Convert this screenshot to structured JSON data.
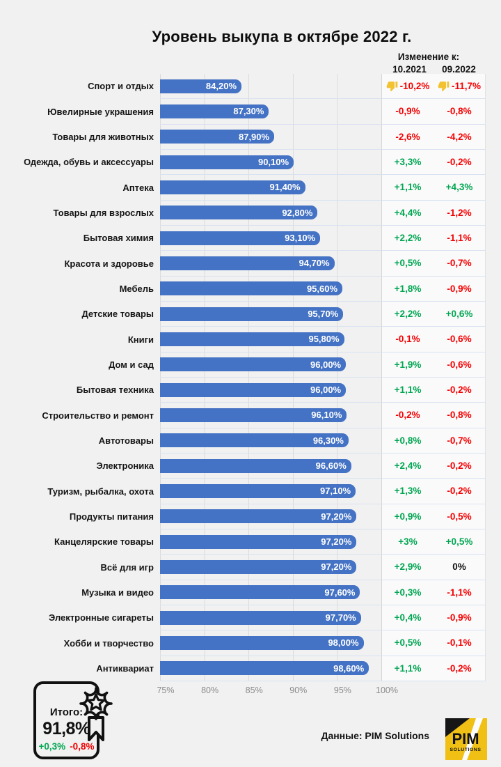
{
  "title": "Уровень выкупа в октябре 2022 г.",
  "header": {
    "change_title": "Изменение к:",
    "columns": [
      "10.2021",
      "09.2022"
    ]
  },
  "chart_data": {
    "type": "bar",
    "orientation": "horizontal",
    "title": "Уровень выкупа в октябре 2022 г.",
    "xlabel": "",
    "ylabel": "",
    "xlim": [
      75,
      100
    ],
    "x_ticks": [
      "75%",
      "80%",
      "85%",
      "90%",
      "95%",
      "100%"
    ],
    "grid": true,
    "bar_color": "#4472C4",
    "categories": [
      "Спорт и отдых",
      "Ювелирные украшения",
      "Товары для животных",
      "Одежда, обувь и аксессуары",
      "Аптека",
      "Товары для взрослых",
      "Бытовая химия",
      "Красота и здоровье",
      "Мебель",
      "Детские товары",
      "Книги",
      "Дом и сад",
      "Бытовая техника",
      "Строительство и ремонт",
      "Автотовары",
      "Электроника",
      "Туризм, рыбалка, охота",
      "Продукты питания",
      "Канцелярские товары",
      "Всё для игр",
      "Музыка и видео",
      "Электронные сигареты",
      "Хобби и творчество",
      "Антиквариат"
    ],
    "values": [
      84.2,
      87.3,
      87.9,
      90.1,
      91.4,
      92.8,
      93.1,
      94.7,
      95.6,
      95.7,
      95.8,
      96.0,
      96.0,
      96.1,
      96.3,
      96.6,
      97.1,
      97.2,
      97.2,
      97.2,
      97.6,
      97.7,
      98.0,
      98.6
    ],
    "value_labels": [
      "84,20%",
      "87,30%",
      "87,90%",
      "90,10%",
      "91,40%",
      "92,80%",
      "93,10%",
      "94,70%",
      "95,60%",
      "95,70%",
      "95,80%",
      "96,00%",
      "96,00%",
      "96,10%",
      "96,30%",
      "96,60%",
      "97,10%",
      "97,20%",
      "97,20%",
      "97,20%",
      "97,60%",
      "97,70%",
      "98,00%",
      "98,60%"
    ],
    "series": [
      {
        "name": "Изменение к 10.2021",
        "values": [
          "-10,2%",
          "-0,9%",
          "-2,6%",
          "+3,3%",
          "+1,1%",
          "+4,4%",
          "+2,2%",
          "+0,5%",
          "+1,8%",
          "+2,2%",
          "-0,1%",
          "+1,9%",
          "+1,1%",
          "-0,2%",
          "+0,8%",
          "+2,4%",
          "+1,3%",
          "+0,9%",
          "+3%",
          "+2,9%",
          "+0,3%",
          "+0,4%",
          "+0,5%",
          "+1,1%"
        ],
        "directions": [
          "down",
          "down",
          "down",
          "up",
          "up",
          "up",
          "up",
          "up",
          "up",
          "up",
          "down",
          "up",
          "up",
          "down",
          "up",
          "up",
          "up",
          "up",
          "up",
          "up",
          "up",
          "up",
          "up",
          "up"
        ],
        "thumb_rows": [
          0
        ]
      },
      {
        "name": "Изменение к 09.2022",
        "values": [
          "-11,7%",
          "-0,8%",
          "-4,2%",
          "-0,2%",
          "+4,3%",
          "-1,2%",
          "-1,1%",
          "-0,7%",
          "-0,9%",
          "+0,6%",
          "-0,6%",
          "-0,6%",
          "-0,2%",
          "-0,8%",
          "-0,7%",
          "-0,2%",
          "-0,2%",
          "-0,5%",
          "+0,5%",
          "0%",
          "-1,1%",
          "-0,9%",
          "-0,1%",
          "-0,2%"
        ],
        "directions": [
          "down",
          "down",
          "down",
          "down",
          "up",
          "down",
          "down",
          "down",
          "down",
          "up",
          "down",
          "down",
          "down",
          "down",
          "down",
          "down",
          "down",
          "down",
          "up",
          "zero",
          "down",
          "down",
          "down",
          "down"
        ],
        "thumb_rows": [
          0
        ]
      }
    ]
  },
  "totals": {
    "label": "Итого:",
    "value": "91,8%",
    "change_1": "+0,3%",
    "change_2": "-0,8%"
  },
  "footer": {
    "source_label": "Данные: PIM Solutions",
    "logo_title": "PIM",
    "logo_subtitle": "SOLUTIONS"
  },
  "colors": {
    "bar": "#4472C4",
    "positive": "#00A651",
    "negative": "#F40000",
    "neutral": "#111111",
    "background": "#F1F1F1",
    "grid": "#DBDBDB",
    "separator": "#D9E2F0",
    "table": "#FAFAFB",
    "thumb": "#F2C231",
    "logo_yellow": "#F0C015"
  }
}
